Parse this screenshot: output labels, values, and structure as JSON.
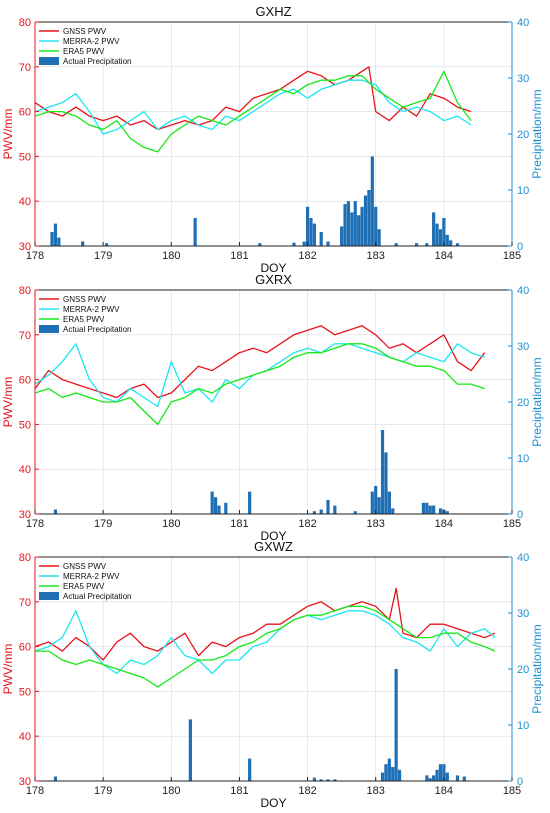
{
  "colors": {
    "gnss": "#e8141c",
    "merra2": "#1ee6ee",
    "era5": "#17e817",
    "precip": "#1f6fb4",
    "left_axis": "#e8141c",
    "right_axis": "#1f8fd0",
    "grid": "#d6dde3"
  },
  "chart_data": [
    {
      "type": "line",
      "title": "GXHZ",
      "xlabel": "DOY",
      "ylabel_left": "PWV/mm",
      "ylabel_right": "Precipitation/mm",
      "xlim": [
        178,
        185
      ],
      "ylim_left": [
        30,
        80
      ],
      "ylim_right": [
        0,
        40
      ],
      "xticks": [
        "178",
        "179",
        "180",
        "181",
        "182",
        "183",
        "184",
        "185"
      ],
      "yticks_left": [
        "30",
        "40",
        "50",
        "60",
        "70",
        "80"
      ],
      "yticks_right": [
        "0",
        "10",
        "20",
        "30",
        "40"
      ],
      "grid": true,
      "legend": "top-left",
      "series": [
        {
          "name": "GNSS PWV",
          "x": [
            178.0,
            178.2,
            178.4,
            178.6,
            178.8,
            179.0,
            179.2,
            179.4,
            179.6,
            179.8,
            180.0,
            180.2,
            180.4,
            180.6,
            180.8,
            181.0,
            181.2,
            181.4,
            181.6,
            181.8,
            182.0,
            182.2,
            182.4,
            182.6,
            182.8,
            182.9,
            183.0,
            183.2,
            183.4,
            183.6,
            183.8,
            184.0,
            184.2,
            184.4
          ],
          "y": [
            62,
            60,
            59,
            61,
            59,
            58,
            59,
            57,
            58,
            56,
            57,
            58,
            57,
            58,
            61,
            60,
            63,
            64,
            65,
            67,
            69,
            68,
            66,
            67,
            69,
            70,
            60,
            58,
            61,
            59,
            64,
            63,
            61,
            60
          ]
        },
        {
          "name": "MERRA-2 PWV",
          "x": [
            178.0,
            178.2,
            178.4,
            178.6,
            178.8,
            179.0,
            179.2,
            179.4,
            179.6,
            179.8,
            180.0,
            180.2,
            180.4,
            180.6,
            180.8,
            181.0,
            181.2,
            181.4,
            181.6,
            181.8,
            182.0,
            182.2,
            182.4,
            182.6,
            182.8,
            183.0,
            183.2,
            183.4,
            183.6,
            183.8,
            184.0,
            184.2,
            184.4
          ],
          "y": [
            60,
            61,
            62,
            64,
            60,
            55,
            56,
            58,
            60,
            56,
            58,
            59,
            57,
            56,
            59,
            58,
            60,
            62,
            64,
            65,
            63,
            65,
            66,
            67,
            67,
            66,
            62,
            60,
            61,
            60,
            58,
            59,
            57
          ]
        },
        {
          "name": "ERA5 PWV",
          "x": [
            178.0,
            178.2,
            178.4,
            178.6,
            178.8,
            179.0,
            179.2,
            179.4,
            179.6,
            179.8,
            180.0,
            180.2,
            180.4,
            180.6,
            180.8,
            181.0,
            181.2,
            181.4,
            181.6,
            181.8,
            182.0,
            182.2,
            182.4,
            182.6,
            182.8,
            183.0,
            183.2,
            183.4,
            183.6,
            183.8,
            184.0,
            184.2,
            184.4
          ],
          "y": [
            59,
            60,
            60,
            59,
            57,
            56,
            58,
            54,
            52,
            51,
            55,
            57,
            59,
            58,
            57,
            59,
            61,
            63,
            65,
            64,
            66,
            67,
            67,
            68,
            68,
            65,
            63,
            61,
            62,
            63,
            69,
            62,
            58
          ]
        },
        {
          "name": "Actual Precipitation",
          "axis": "right",
          "x": [
            178.25,
            178.3,
            178.35,
            178.7,
            179.05,
            180.35,
            181.3,
            181.8,
            181.95,
            182.0,
            182.05,
            182.1,
            182.2,
            182.3,
            182.5,
            182.55,
            182.6,
            182.65,
            182.7,
            182.75,
            182.8,
            182.85,
            182.9,
            182.95,
            183.0,
            183.05,
            183.3,
            183.6,
            183.75,
            183.85,
            183.9,
            183.95,
            184.0,
            184.05,
            184.1,
            184.2
          ],
          "y": [
            2.5,
            4,
            1.5,
            0.8,
            0.5,
            5,
            0.5,
            0.6,
            0.8,
            7,
            5,
            4,
            2.5,
            0.8,
            3.5,
            7.5,
            8,
            6,
            8,
            5.5,
            7,
            9,
            10,
            16,
            7,
            3,
            0.5,
            0.5,
            0.5,
            6,
            4,
            3,
            5,
            2,
            1,
            0.5
          ]
        }
      ]
    },
    {
      "type": "line",
      "title": "GXRX",
      "xlabel": "DOY",
      "ylabel_left": "PWV/mm",
      "ylabel_right": "Precipitation/mm",
      "xlim": [
        178,
        185
      ],
      "ylim_left": [
        30,
        80
      ],
      "ylim_right": [
        0,
        40
      ],
      "xticks": [
        "178",
        "179",
        "180",
        "181",
        "182",
        "183",
        "184",
        "185"
      ],
      "yticks_left": [
        "30",
        "40",
        "50",
        "60",
        "70",
        "80"
      ],
      "yticks_right": [
        "0",
        "10",
        "20",
        "30",
        "40"
      ],
      "grid": true,
      "legend": "top-left",
      "series": [
        {
          "name": "GNSS PWV",
          "x": [
            178.0,
            178.2,
            178.4,
            178.6,
            178.8,
            179.0,
            179.2,
            179.4,
            179.6,
            179.8,
            180.0,
            180.2,
            180.4,
            180.6,
            180.8,
            181.0,
            181.2,
            181.4,
            181.6,
            181.8,
            182.0,
            182.2,
            182.4,
            182.6,
            182.8,
            183.0,
            183.2,
            183.4,
            183.6,
            183.8,
            184.0,
            184.2,
            184.4,
            184.6
          ],
          "y": [
            58,
            62,
            60,
            59,
            58,
            57,
            56,
            58,
            59,
            56,
            57,
            60,
            63,
            62,
            64,
            66,
            67,
            66,
            68,
            70,
            71,
            72,
            70,
            71,
            72,
            70,
            67,
            68,
            66,
            68,
            70,
            64,
            62,
            66
          ]
        },
        {
          "name": "MERRA-2 PWV",
          "x": [
            178.0,
            178.2,
            178.4,
            178.6,
            178.8,
            179.0,
            179.2,
            179.4,
            179.6,
            179.8,
            180.0,
            180.2,
            180.4,
            180.6,
            180.8,
            181.0,
            181.2,
            181.4,
            181.6,
            181.8,
            182.0,
            182.2,
            182.4,
            182.6,
            182.8,
            183.0,
            183.2,
            183.4,
            183.6,
            183.8,
            184.0,
            184.2,
            184.4,
            184.6
          ],
          "y": [
            59,
            61,
            64,
            68,
            60,
            56,
            55,
            58,
            56,
            54,
            64,
            57,
            58,
            55,
            60,
            58,
            61,
            62,
            64,
            66,
            67,
            66,
            68,
            68,
            67,
            66,
            65,
            64,
            66,
            65,
            64,
            68,
            66,
            65
          ]
        },
        {
          "name": "ERA5 PWV",
          "x": [
            178.0,
            178.2,
            178.4,
            178.6,
            178.8,
            179.0,
            179.2,
            179.4,
            179.6,
            179.8,
            180.0,
            180.2,
            180.4,
            180.6,
            180.8,
            181.0,
            181.2,
            181.4,
            181.6,
            181.8,
            182.0,
            182.2,
            182.4,
            182.6,
            182.8,
            183.0,
            183.2,
            183.4,
            183.6,
            183.8,
            184.0,
            184.2,
            184.4,
            184.6
          ],
          "y": [
            57,
            58,
            56,
            57,
            56,
            55,
            55,
            56,
            53,
            50,
            55,
            56,
            58,
            57,
            59,
            60,
            61,
            62,
            63,
            65,
            66,
            66,
            67,
            68,
            68,
            67,
            65,
            64,
            63,
            63,
            62,
            59,
            59,
            58
          ]
        },
        {
          "name": "Actual Precipitation",
          "axis": "right",
          "x": [
            178.3,
            180.6,
            180.65,
            180.7,
            180.8,
            181.15,
            182.1,
            182.2,
            182.3,
            182.4,
            182.7,
            182.95,
            183.0,
            183.05,
            183.1,
            183.15,
            183.2,
            183.25,
            183.7,
            183.75,
            183.8,
            183.85,
            183.95,
            184.0,
            184.05
          ],
          "y": [
            0.8,
            4,
            3,
            1.5,
            2,
            4,
            0.5,
            0.8,
            2.5,
            1.5,
            0.5,
            4,
            5,
            3,
            15,
            11,
            4,
            1,
            2,
            2,
            1.5,
            1.5,
            1,
            0.8,
            0.5
          ]
        }
      ]
    },
    {
      "type": "line",
      "title": "GXWZ",
      "xlabel": "DOY",
      "ylabel_left": "PWV/mm",
      "ylabel_right": "Precipitation/mm",
      "xlim": [
        178,
        185
      ],
      "ylim_left": [
        30,
        80
      ],
      "ylim_right": [
        0,
        40
      ],
      "xticks": [
        "178",
        "179",
        "180",
        "181",
        "182",
        "183",
        "184",
        "185"
      ],
      "yticks_left": [
        "30",
        "40",
        "50",
        "60",
        "70",
        "80"
      ],
      "yticks_right": [
        "0",
        "10",
        "20",
        "30",
        "40"
      ],
      "grid": true,
      "legend": "top-left",
      "series": [
        {
          "name": "GNSS PWV",
          "x": [
            178.0,
            178.2,
            178.4,
            178.6,
            178.8,
            179.0,
            179.2,
            179.4,
            179.6,
            179.8,
            180.0,
            180.2,
            180.4,
            180.6,
            180.8,
            181.0,
            181.2,
            181.4,
            181.6,
            181.8,
            182.0,
            182.2,
            182.4,
            182.6,
            182.8,
            183.0,
            183.2,
            183.3,
            183.4,
            183.6,
            183.8,
            184.0,
            184.2,
            184.4,
            184.6,
            184.75
          ],
          "y": [
            60,
            61,
            59,
            62,
            60,
            57,
            61,
            63,
            60,
            59,
            61,
            63,
            58,
            61,
            60,
            62,
            63,
            65,
            65,
            67,
            69,
            70,
            68,
            69,
            70,
            69,
            66,
            73,
            63,
            62,
            65,
            65,
            64,
            63,
            62,
            63
          ]
        },
        {
          "name": "MERRA-2 PWV",
          "x": [
            178.0,
            178.2,
            178.4,
            178.6,
            178.8,
            179.0,
            179.2,
            179.4,
            179.6,
            179.8,
            180.0,
            180.2,
            180.4,
            180.6,
            180.8,
            181.0,
            181.2,
            181.4,
            181.6,
            181.8,
            182.0,
            182.2,
            182.4,
            182.6,
            182.8,
            183.0,
            183.2,
            183.4,
            183.6,
            183.8,
            184.0,
            184.2,
            184.4,
            184.6,
            184.75
          ],
          "y": [
            59,
            60,
            62,
            68,
            60,
            56,
            54,
            57,
            56,
            58,
            62,
            58,
            57,
            54,
            57,
            57,
            60,
            61,
            64,
            66,
            67,
            66,
            67,
            68,
            68,
            67,
            65,
            62,
            61,
            59,
            64,
            60,
            63,
            64,
            62
          ]
        },
        {
          "name": "ERA5 PWV",
          "x": [
            178.0,
            178.2,
            178.4,
            178.6,
            178.8,
            179.0,
            179.2,
            179.4,
            179.6,
            179.8,
            180.0,
            180.2,
            180.4,
            180.6,
            180.8,
            181.0,
            181.2,
            181.4,
            181.6,
            181.8,
            182.0,
            182.2,
            182.4,
            182.6,
            182.8,
            183.0,
            183.2,
            183.4,
            183.6,
            183.8,
            184.0,
            184.2,
            184.4,
            184.6,
            184.75
          ],
          "y": [
            59,
            59,
            57,
            56,
            57,
            56,
            55,
            54,
            53,
            51,
            53,
            55,
            57,
            57,
            58,
            60,
            61,
            63,
            64,
            66,
            67,
            67,
            68,
            69,
            69,
            68,
            66,
            64,
            62,
            62,
            63,
            63,
            61,
            60,
            59
          ]
        },
        {
          "name": "Actual Precipitation",
          "axis": "right",
          "x": [
            178.3,
            180.28,
            181.15,
            182.1,
            182.2,
            182.3,
            182.4,
            183.1,
            183.15,
            183.2,
            183.25,
            183.3,
            183.35,
            183.75,
            183.8,
            183.85,
            183.9,
            183.95,
            184.0,
            184.05,
            184.2,
            184.3
          ],
          "y": [
            0.8,
            11,
            4,
            0.6,
            0.3,
            0.3,
            0.3,
            1.5,
            3,
            4,
            2.5,
            20,
            2,
            1,
            0.5,
            1,
            2,
            3,
            3,
            1.5,
            1,
            0.8
          ]
        }
      ]
    }
  ]
}
